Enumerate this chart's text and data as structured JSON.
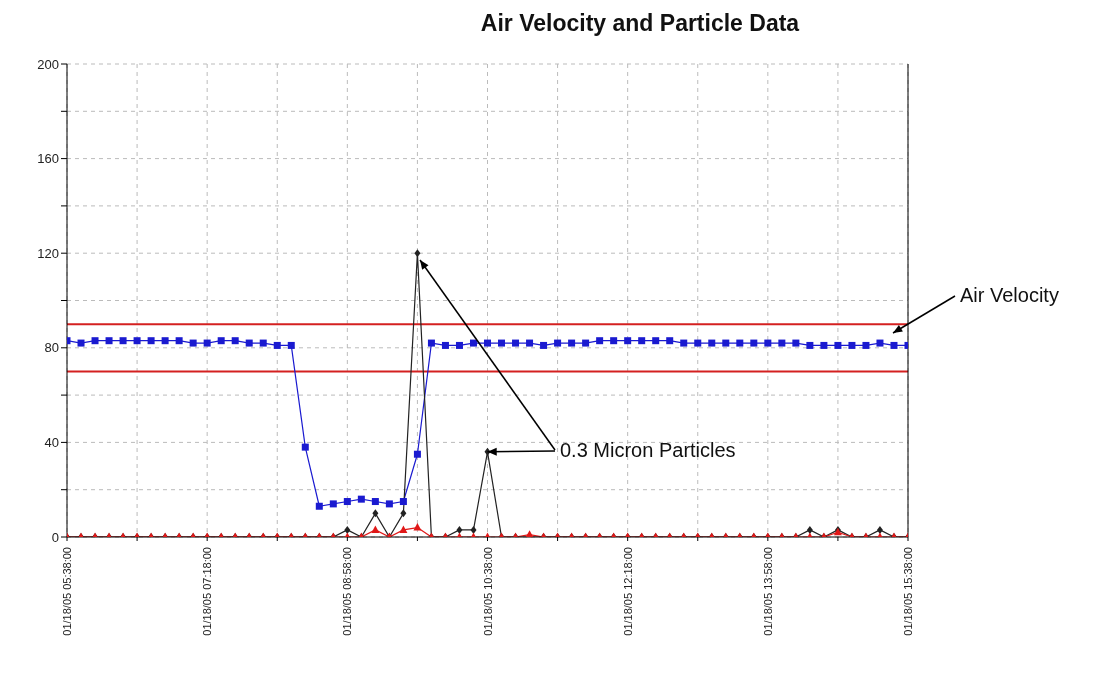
{
  "chart_data": {
    "type": "line",
    "title": "Air Velocity and Particle Data",
    "categories": [
      "01/18/05 05:38:00",
      null,
      null,
      null,
      null,
      null,
      null,
      null,
      null,
      null,
      "01/18/05 07:18:00",
      null,
      null,
      null,
      null,
      null,
      null,
      null,
      null,
      null,
      "01/18/05 08:58:00",
      null,
      null,
      null,
      null,
      null,
      null,
      null,
      null,
      null,
      "01/18/05 10:38:00",
      null,
      null,
      null,
      null,
      null,
      null,
      null,
      null,
      null,
      "01/18/05 12:18:00",
      null,
      null,
      null,
      null,
      null,
      null,
      null,
      null,
      null,
      "01/18/05 13:58:00",
      null,
      null,
      null,
      null,
      null,
      null,
      null,
      null,
      null,
      "01/18/05 15:38:00"
    ],
    "series": [
      {
        "color": "#1a1ad0",
        "marker": "square",
        "values": [
          83,
          82,
          83,
          83,
          83,
          83,
          83,
          83,
          83,
          82,
          82,
          83,
          83,
          82,
          82,
          81,
          81,
          38,
          13,
          14,
          15,
          16,
          15,
          14,
          15,
          35,
          82,
          81,
          81,
          82,
          82,
          82,
          82,
          82,
          81,
          82,
          82,
          82,
          83,
          83,
          83,
          83,
          83,
          83,
          82,
          82,
          82,
          82,
          82,
          82,
          82,
          82,
          82,
          81,
          81,
          81,
          81,
          81,
          82,
          81,
          81
        ]
      },
      {
        "color": "#222222",
        "marker": "diamond",
        "values": [
          0,
          0,
          0,
          0,
          0,
          0,
          0,
          0,
          0,
          0,
          0,
          0,
          0,
          0,
          0,
          0,
          0,
          0,
          0,
          0,
          3,
          0,
          10,
          0,
          10,
          120,
          0,
          0,
          3,
          3,
          36,
          0,
          0,
          0,
          0,
          0,
          0,
          0,
          0,
          0,
          0,
          0,
          0,
          0,
          0,
          0,
          0,
          0,
          0,
          0,
          0,
          0,
          0,
          3,
          0,
          3,
          0,
          0,
          3,
          0,
          0
        ]
      },
      {
        "color": "#e01818",
        "marker": "triangle",
        "values": [
          0,
          0,
          0,
          0,
          0,
          0,
          0,
          0,
          0,
          0,
          0,
          0,
          0,
          0,
          0,
          0,
          0,
          0,
          0,
          0,
          0,
          0,
          3,
          0,
          3,
          4,
          0,
          0,
          0,
          0,
          0,
          0,
          0,
          1,
          0,
          0,
          0,
          0,
          0,
          0,
          0,
          0,
          0,
          0,
          0,
          0,
          0,
          0,
          0,
          0,
          0,
          0,
          0,
          0,
          0,
          2,
          0,
          0,
          0,
          0,
          0
        ]
      }
    ],
    "ylim": [
      0,
      200
    ],
    "yticks": [
      0,
      {
        "value": 20,
        "label": null
      },
      40,
      {
        "value": 60,
        "label": null
      },
      80,
      {
        "value": 100,
        "label": null
      },
      120,
      {
        "value": 140,
        "label": null
      },
      160,
      {
        "value": 180,
        "label": null
      },
      200
    ],
    "grid": true,
    "ref_lines": [
      {
        "axis": "y",
        "value": 90,
        "color": "#d42020"
      },
      {
        "axis": "y",
        "value": 70,
        "color": "#d42020"
      }
    ],
    "annotations": [
      "Air Velocity",
      {
        "text": "0.3 Micron Particles",
        "x": "01/18/05 10:38:00",
        "y": 36
      }
    ]
  }
}
